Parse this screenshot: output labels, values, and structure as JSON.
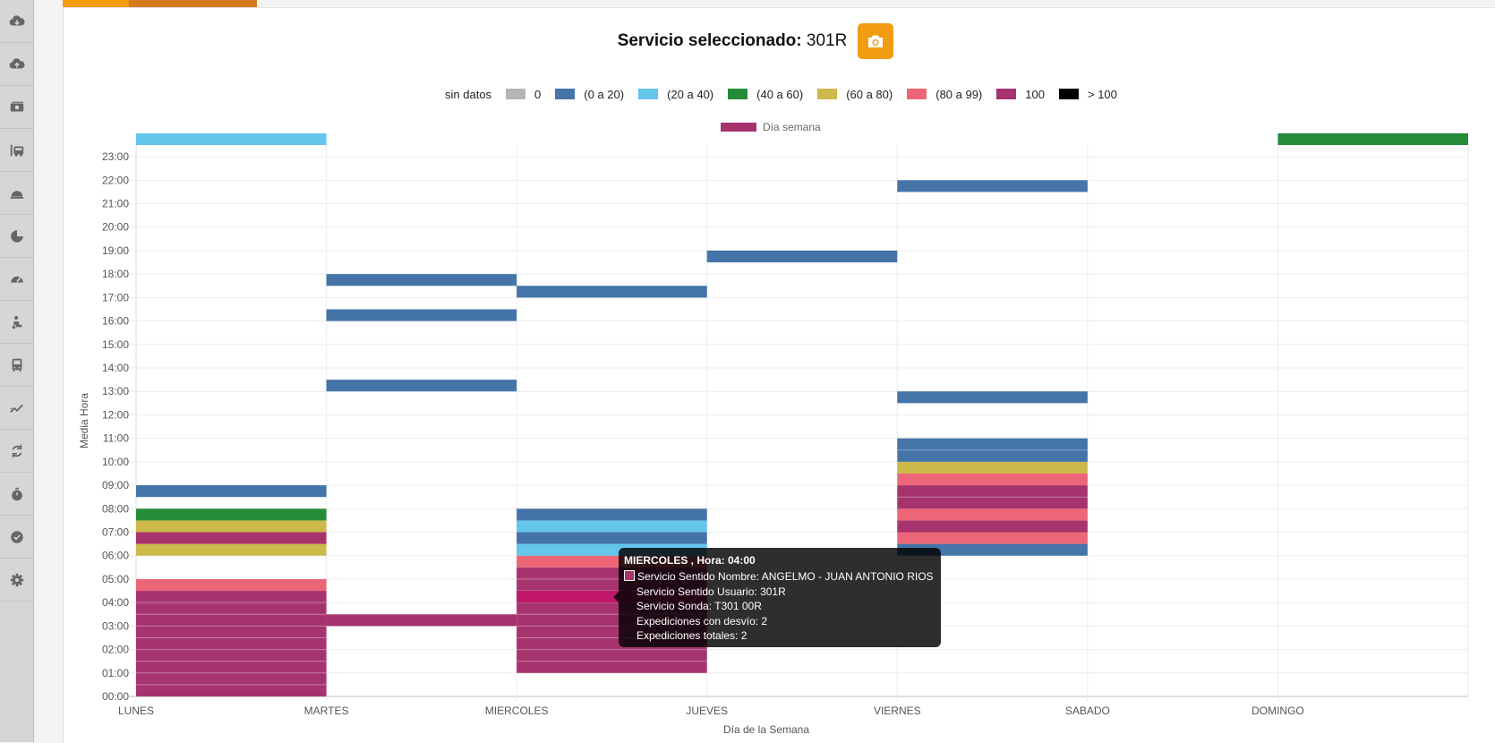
{
  "sidebar": {
    "items": [
      {
        "icon": "cloud-download-icon"
      },
      {
        "icon": "cloud-upload-icon"
      },
      {
        "icon": "money-icon"
      },
      {
        "icon": "bus-stop-icon"
      },
      {
        "icon": "dome-icon"
      },
      {
        "icon": "pie-chart-icon"
      },
      {
        "icon": "gauge-icon"
      },
      {
        "icon": "person-icon"
      },
      {
        "icon": "bus-icon"
      },
      {
        "icon": "trend-chart-icon"
      },
      {
        "icon": "refresh-icon"
      },
      {
        "icon": "stopwatch-icon"
      },
      {
        "icon": "check-circle-icon"
      },
      {
        "icon": "gear-icon"
      }
    ]
  },
  "header": {
    "title_label": "Servicio seleccionado:",
    "title_value": "301R",
    "snapshot_icon": "camera-icon"
  },
  "legend": {
    "heading": "sin datos",
    "items": [
      {
        "label": "0",
        "color": "#b5b5b5"
      },
      {
        "label": "(0 a 20)",
        "color": "#4474a8"
      },
      {
        "label": "(20 a 40)",
        "color": "#63c6ea"
      },
      {
        "label": "(40 a 60)",
        "color": "#248c38"
      },
      {
        "label": "(60 a 80)",
        "color": "#cdb84a"
      },
      {
        "label": "(80 a 99)",
        "color": "#ec6678"
      },
      {
        "label": "100",
        "color": "#a7336e"
      },
      {
        "label": "> 100",
        "color": "#000000"
      }
    ]
  },
  "chart_data": {
    "type": "heatmap",
    "series_legend": {
      "name": "Día semana",
      "color": "#a7336e"
    },
    "xlabel": "Día de la Semana",
    "ylabel": "Media Hora",
    "categories": [
      "LUNES",
      "MARTES",
      "MIERCOLES",
      "JUEVES",
      "VIERNES",
      "SABADO",
      "DOMINGO"
    ],
    "yticks": [
      "00:00",
      "01:00",
      "02:00",
      "03:00",
      "04:00",
      "05:00",
      "06:00",
      "07:00",
      "08:00",
      "09:00",
      "10:00",
      "11:00",
      "12:00",
      "13:00",
      "14:00",
      "15:00",
      "16:00",
      "17:00",
      "18:00",
      "19:00",
      "20:00",
      "21:00",
      "22:00",
      "23:00"
    ],
    "ylim": [
      0,
      24
    ],
    "cells": [
      {
        "day": 0,
        "from": 0,
        "to": 4.5,
        "bin": 6
      },
      {
        "day": 0,
        "from": 4.5,
        "to": 5,
        "bin": 5
      },
      {
        "day": 0,
        "from": 6,
        "to": 6.5,
        "bin": 4
      },
      {
        "day": 0,
        "from": 6.5,
        "to": 7,
        "bin": 6
      },
      {
        "day": 0,
        "from": 7,
        "to": 7.5,
        "bin": 4
      },
      {
        "day": 0,
        "from": 7.5,
        "to": 8,
        "bin": 3
      },
      {
        "day": 0,
        "from": 8.5,
        "to": 9,
        "bin": 1
      },
      {
        "day": 0,
        "from": 23.5,
        "to": 24,
        "bin": 2
      },
      {
        "day": 1,
        "from": 3,
        "to": 3.5,
        "bin": 6
      },
      {
        "day": 1,
        "from": 13,
        "to": 13.5,
        "bin": 1
      },
      {
        "day": 1,
        "from": 16,
        "to": 16.5,
        "bin": 1
      },
      {
        "day": 1,
        "from": 17.5,
        "to": 18,
        "bin": 1
      },
      {
        "day": 2,
        "from": 1,
        "to": 5.5,
        "bin": 6
      },
      {
        "day": 2,
        "from": 5.5,
        "to": 6,
        "bin": 5
      },
      {
        "day": 2,
        "from": 6,
        "to": 6.5,
        "bin": 2
      },
      {
        "day": 2,
        "from": 6.5,
        "to": 7,
        "bin": 1
      },
      {
        "day": 2,
        "from": 7,
        "to": 7.5,
        "bin": 2
      },
      {
        "day": 2,
        "from": 7.5,
        "to": 8,
        "bin": 1
      },
      {
        "day": 2,
        "from": 17,
        "to": 17.5,
        "bin": 1
      },
      {
        "day": 3,
        "from": 18.5,
        "to": 19,
        "bin": 1
      },
      {
        "day": 4,
        "from": 6,
        "to": 6.5,
        "bin": 1
      },
      {
        "day": 4,
        "from": 6.5,
        "to": 7,
        "bin": 5
      },
      {
        "day": 4,
        "from": 7,
        "to": 7.5,
        "bin": 6
      },
      {
        "day": 4,
        "from": 7.5,
        "to": 8,
        "bin": 5
      },
      {
        "day": 4,
        "from": 8,
        "to": 9,
        "bin": 6
      },
      {
        "day": 4,
        "from": 9,
        "to": 9.5,
        "bin": 5
      },
      {
        "day": 4,
        "from": 9.5,
        "to": 10,
        "bin": 4
      },
      {
        "day": 4,
        "from": 10,
        "to": 11,
        "bin": 1
      },
      {
        "day": 4,
        "from": 12.5,
        "to": 13,
        "bin": 1
      },
      {
        "day": 4,
        "from": 21.5,
        "to": 22,
        "bin": 1
      },
      {
        "day": 6,
        "from": 23.5,
        "to": 24,
        "bin": 3
      }
    ],
    "highlight": {
      "day": 2,
      "from": 4,
      "to": 4.5,
      "color": "#c0176b"
    }
  },
  "tooltip": {
    "title": "MIERCOLES , Hora: 04:00",
    "lines": [
      "Servicio Sentido Nombre: ANGELMO  - JUAN ANTONIO RIOS",
      "Servicio Sentido Usuario: 301R",
      "Servicio Sonda: T301 00R",
      "Expediciones con desvío: 2",
      "Expediciones totales: 2"
    ]
  }
}
